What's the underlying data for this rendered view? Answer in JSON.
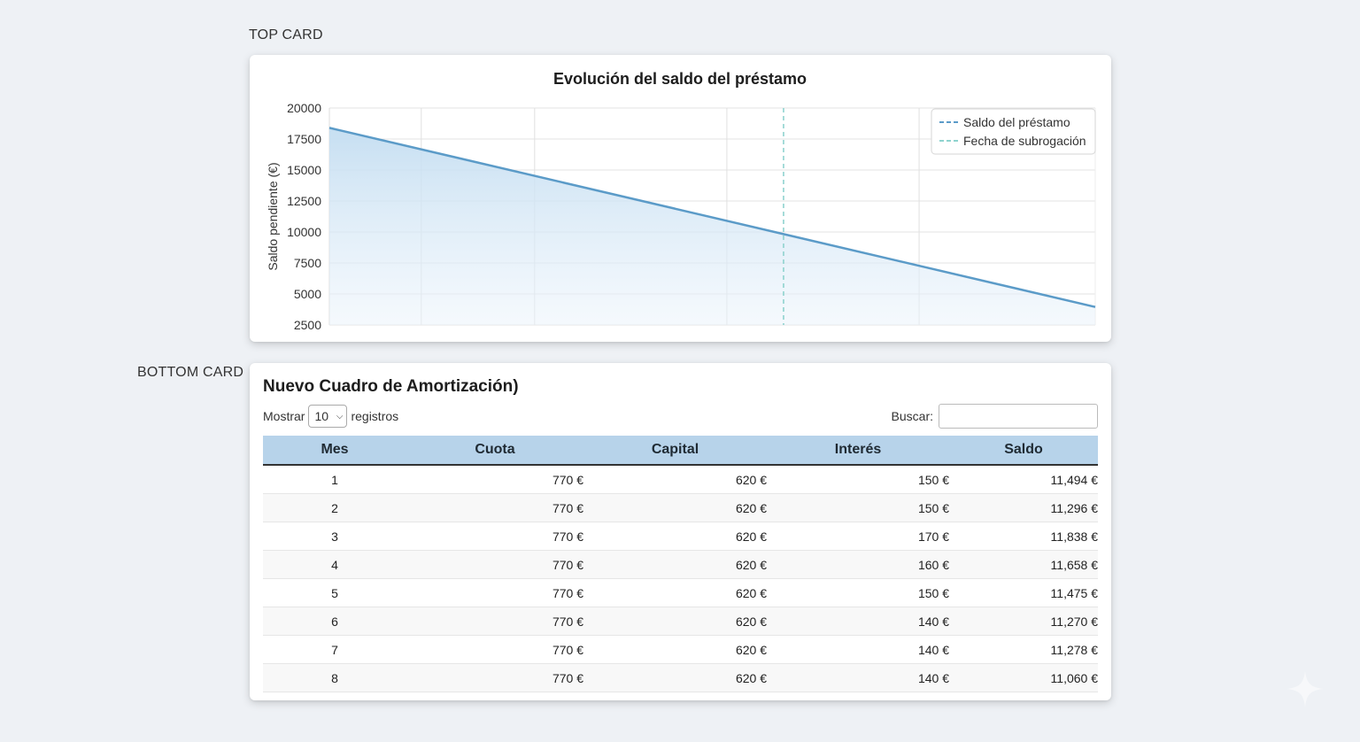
{
  "labels": {
    "top_card": "TOP CARD",
    "bottom_card": "BOTTOM CARD"
  },
  "chart_data": {
    "type": "line",
    "title": "Evolución del saldo del préstamo",
    "ylabel": "Saldo pendiente (€)",
    "xlabel": "",
    "ylim": [
      2500,
      20000
    ],
    "yticks": [
      20000,
      17500,
      15000,
      12500,
      10000,
      7500,
      5000,
      2500
    ],
    "xlim": [
      0,
      1
    ],
    "series": [
      {
        "name": "Saldo del préstamo",
        "x": [
          0,
          1
        ],
        "values": [
          18400,
          3950
        ],
        "color": "#5b9bc8",
        "fill": true
      }
    ],
    "subrogation_marker": {
      "name": "Fecha de subrogación",
      "x": 0.593,
      "color": "#8fd3cf"
    },
    "x_gridlines": [
      0.12,
      0.268,
      0.519,
      0.77
    ],
    "grid": true,
    "legend_position": "top-right"
  },
  "table": {
    "title": "Nuevo Cuadro de Amortización)",
    "show_label": "Mostrar",
    "show_value": "10",
    "records_label": "registros",
    "search_label": "Buscar:",
    "search_value": "",
    "columns": [
      "Mes",
      "Cuota",
      "Capital",
      "Interés",
      "Saldo"
    ],
    "rows": [
      [
        "1",
        "770 €",
        "620 €",
        "150 €",
        "11,494 €"
      ],
      [
        "2",
        "770 €",
        "620 €",
        "150 €",
        "11,296 €"
      ],
      [
        "3",
        "770 €",
        "620 €",
        "170 €",
        "11,838 €"
      ],
      [
        "4",
        "770 €",
        "620 €",
        "160 €",
        "11,658 €"
      ],
      [
        "5",
        "770 €",
        "620 €",
        "150 €",
        "11,475 €"
      ],
      [
        "6",
        "770 €",
        "620 €",
        "140 €",
        "11,270 €"
      ],
      [
        "7",
        "770 €",
        "620 €",
        "140 €",
        "11,278 €"
      ],
      [
        "8",
        "770 €",
        "620 €",
        "140 €",
        "11,060 €"
      ]
    ]
  },
  "icons": {
    "select_chevron": "chevron-down-icon",
    "corner_decoration": "sparkle-icon"
  }
}
